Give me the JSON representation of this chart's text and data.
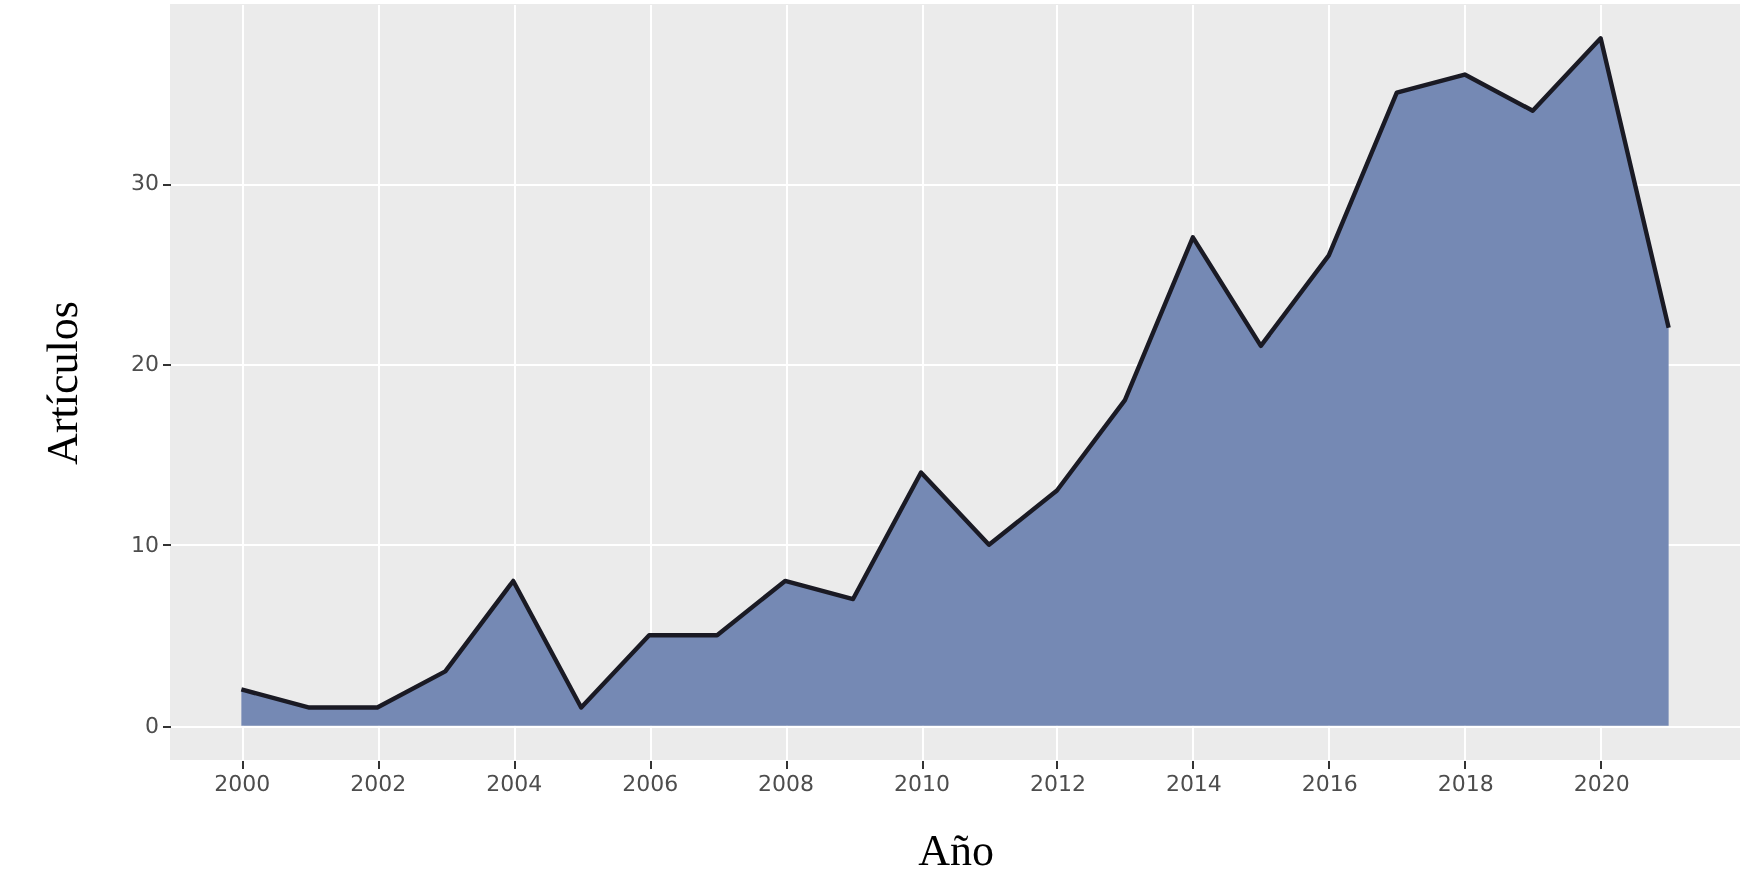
{
  "chart_data": {
    "type": "area",
    "xlabel": "Año",
    "ylabel": "Artículos",
    "x": [
      2000,
      2001,
      2002,
      2003,
      2004,
      2005,
      2006,
      2007,
      2008,
      2009,
      2010,
      2011,
      2012,
      2013,
      2014,
      2015,
      2016,
      2017,
      2018,
      2019,
      2020,
      2021
    ],
    "series": [
      {
        "color": "#7589b4",
        "values": [
          2,
          1,
          1,
          3,
          8,
          1,
          5,
          5,
          8,
          7,
          14,
          10,
          13,
          18,
          27,
          21,
          26,
          35,
          36,
          34,
          38,
          22
        ]
      }
    ],
    "xlim": [
      1998.95,
      2022.05
    ],
    "xticks": [
      2000,
      2002,
      2004,
      2006,
      2008,
      2010,
      2012,
      2014,
      2016,
      2018,
      2020
    ],
    "ylim": [
      -1.9,
      39.9
    ],
    "yticks": [
      0,
      10,
      20,
      30
    ],
    "grid": true
  }
}
